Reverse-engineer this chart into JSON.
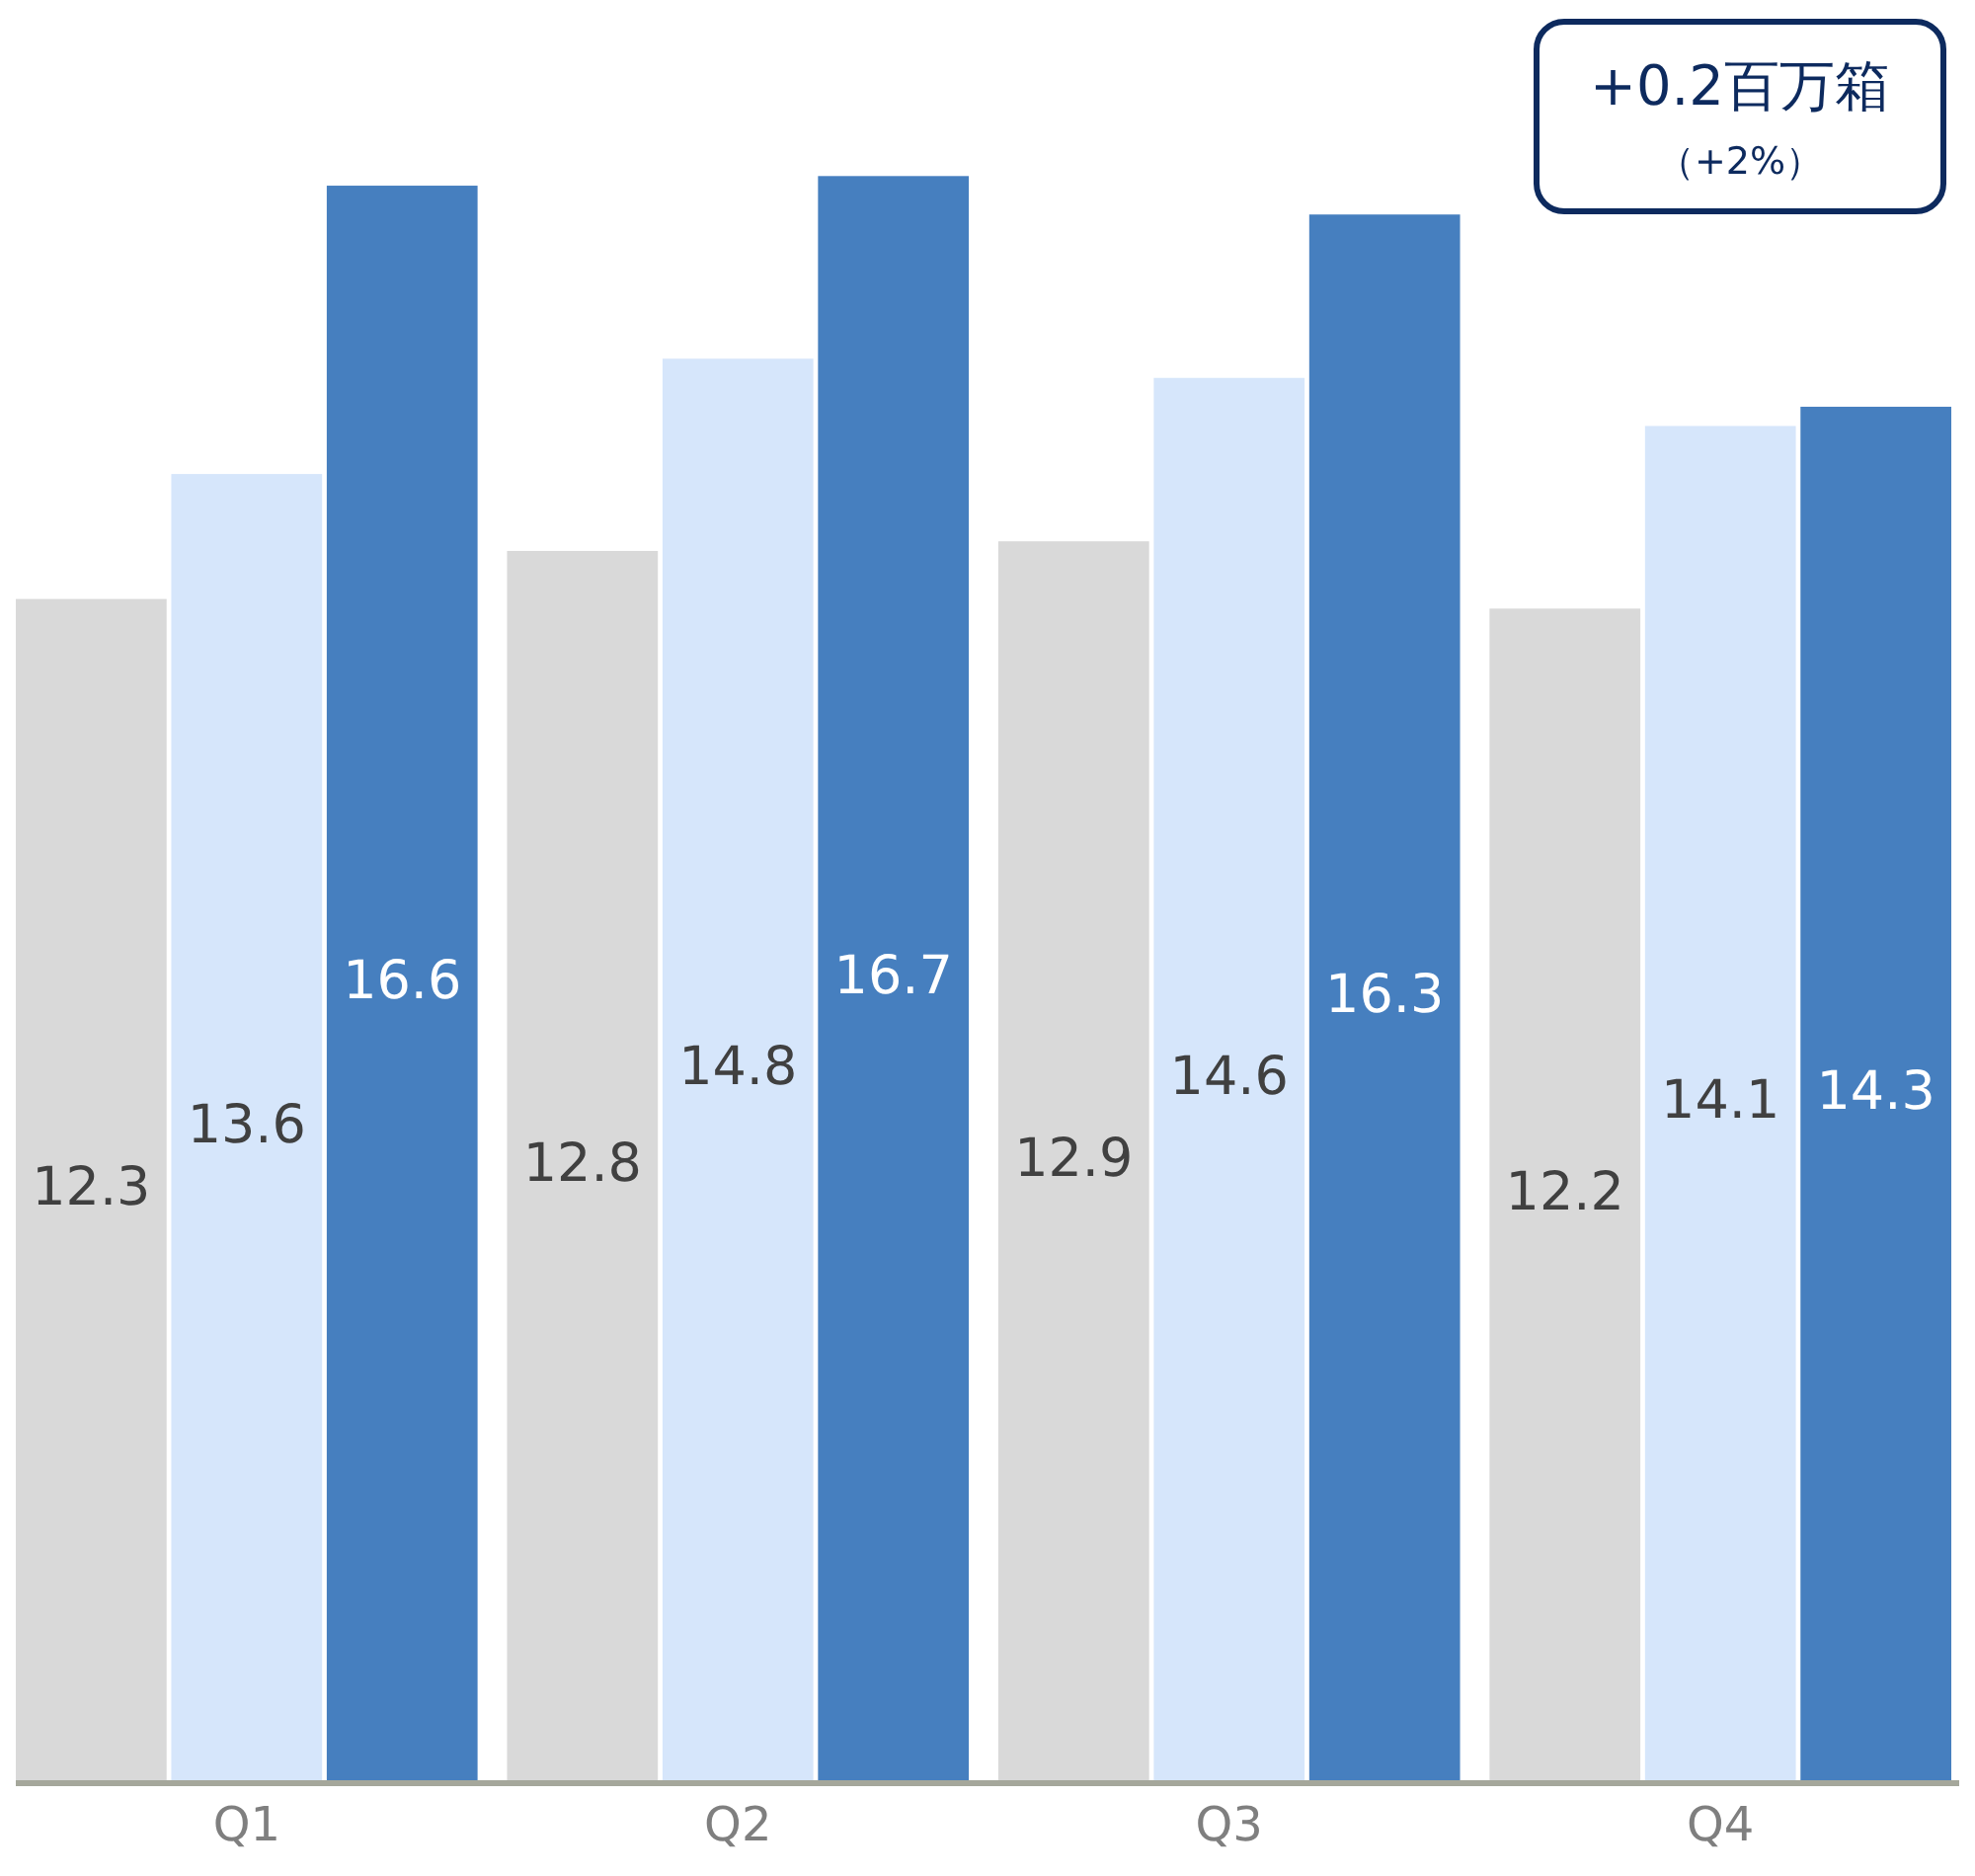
{
  "chart_data": {
    "type": "bar",
    "categories": [
      "Q1",
      "Q2",
      "Q3",
      "Q4"
    ],
    "series": [
      {
        "color": "#d9d9d9",
        "values": [
          12.3,
          12.8,
          12.9,
          12.2
        ]
      },
      {
        "color": "#d6e6fb",
        "values": [
          13.6,
          14.8,
          14.6,
          14.1
        ]
      },
      {
        "color": "#467fbf",
        "values": [
          16.6,
          16.7,
          16.3,
          14.3
        ]
      }
    ],
    "data_labels": true,
    "annotations": [
      "+0.2百万箱",
      "（+2%）"
    ]
  }
}
